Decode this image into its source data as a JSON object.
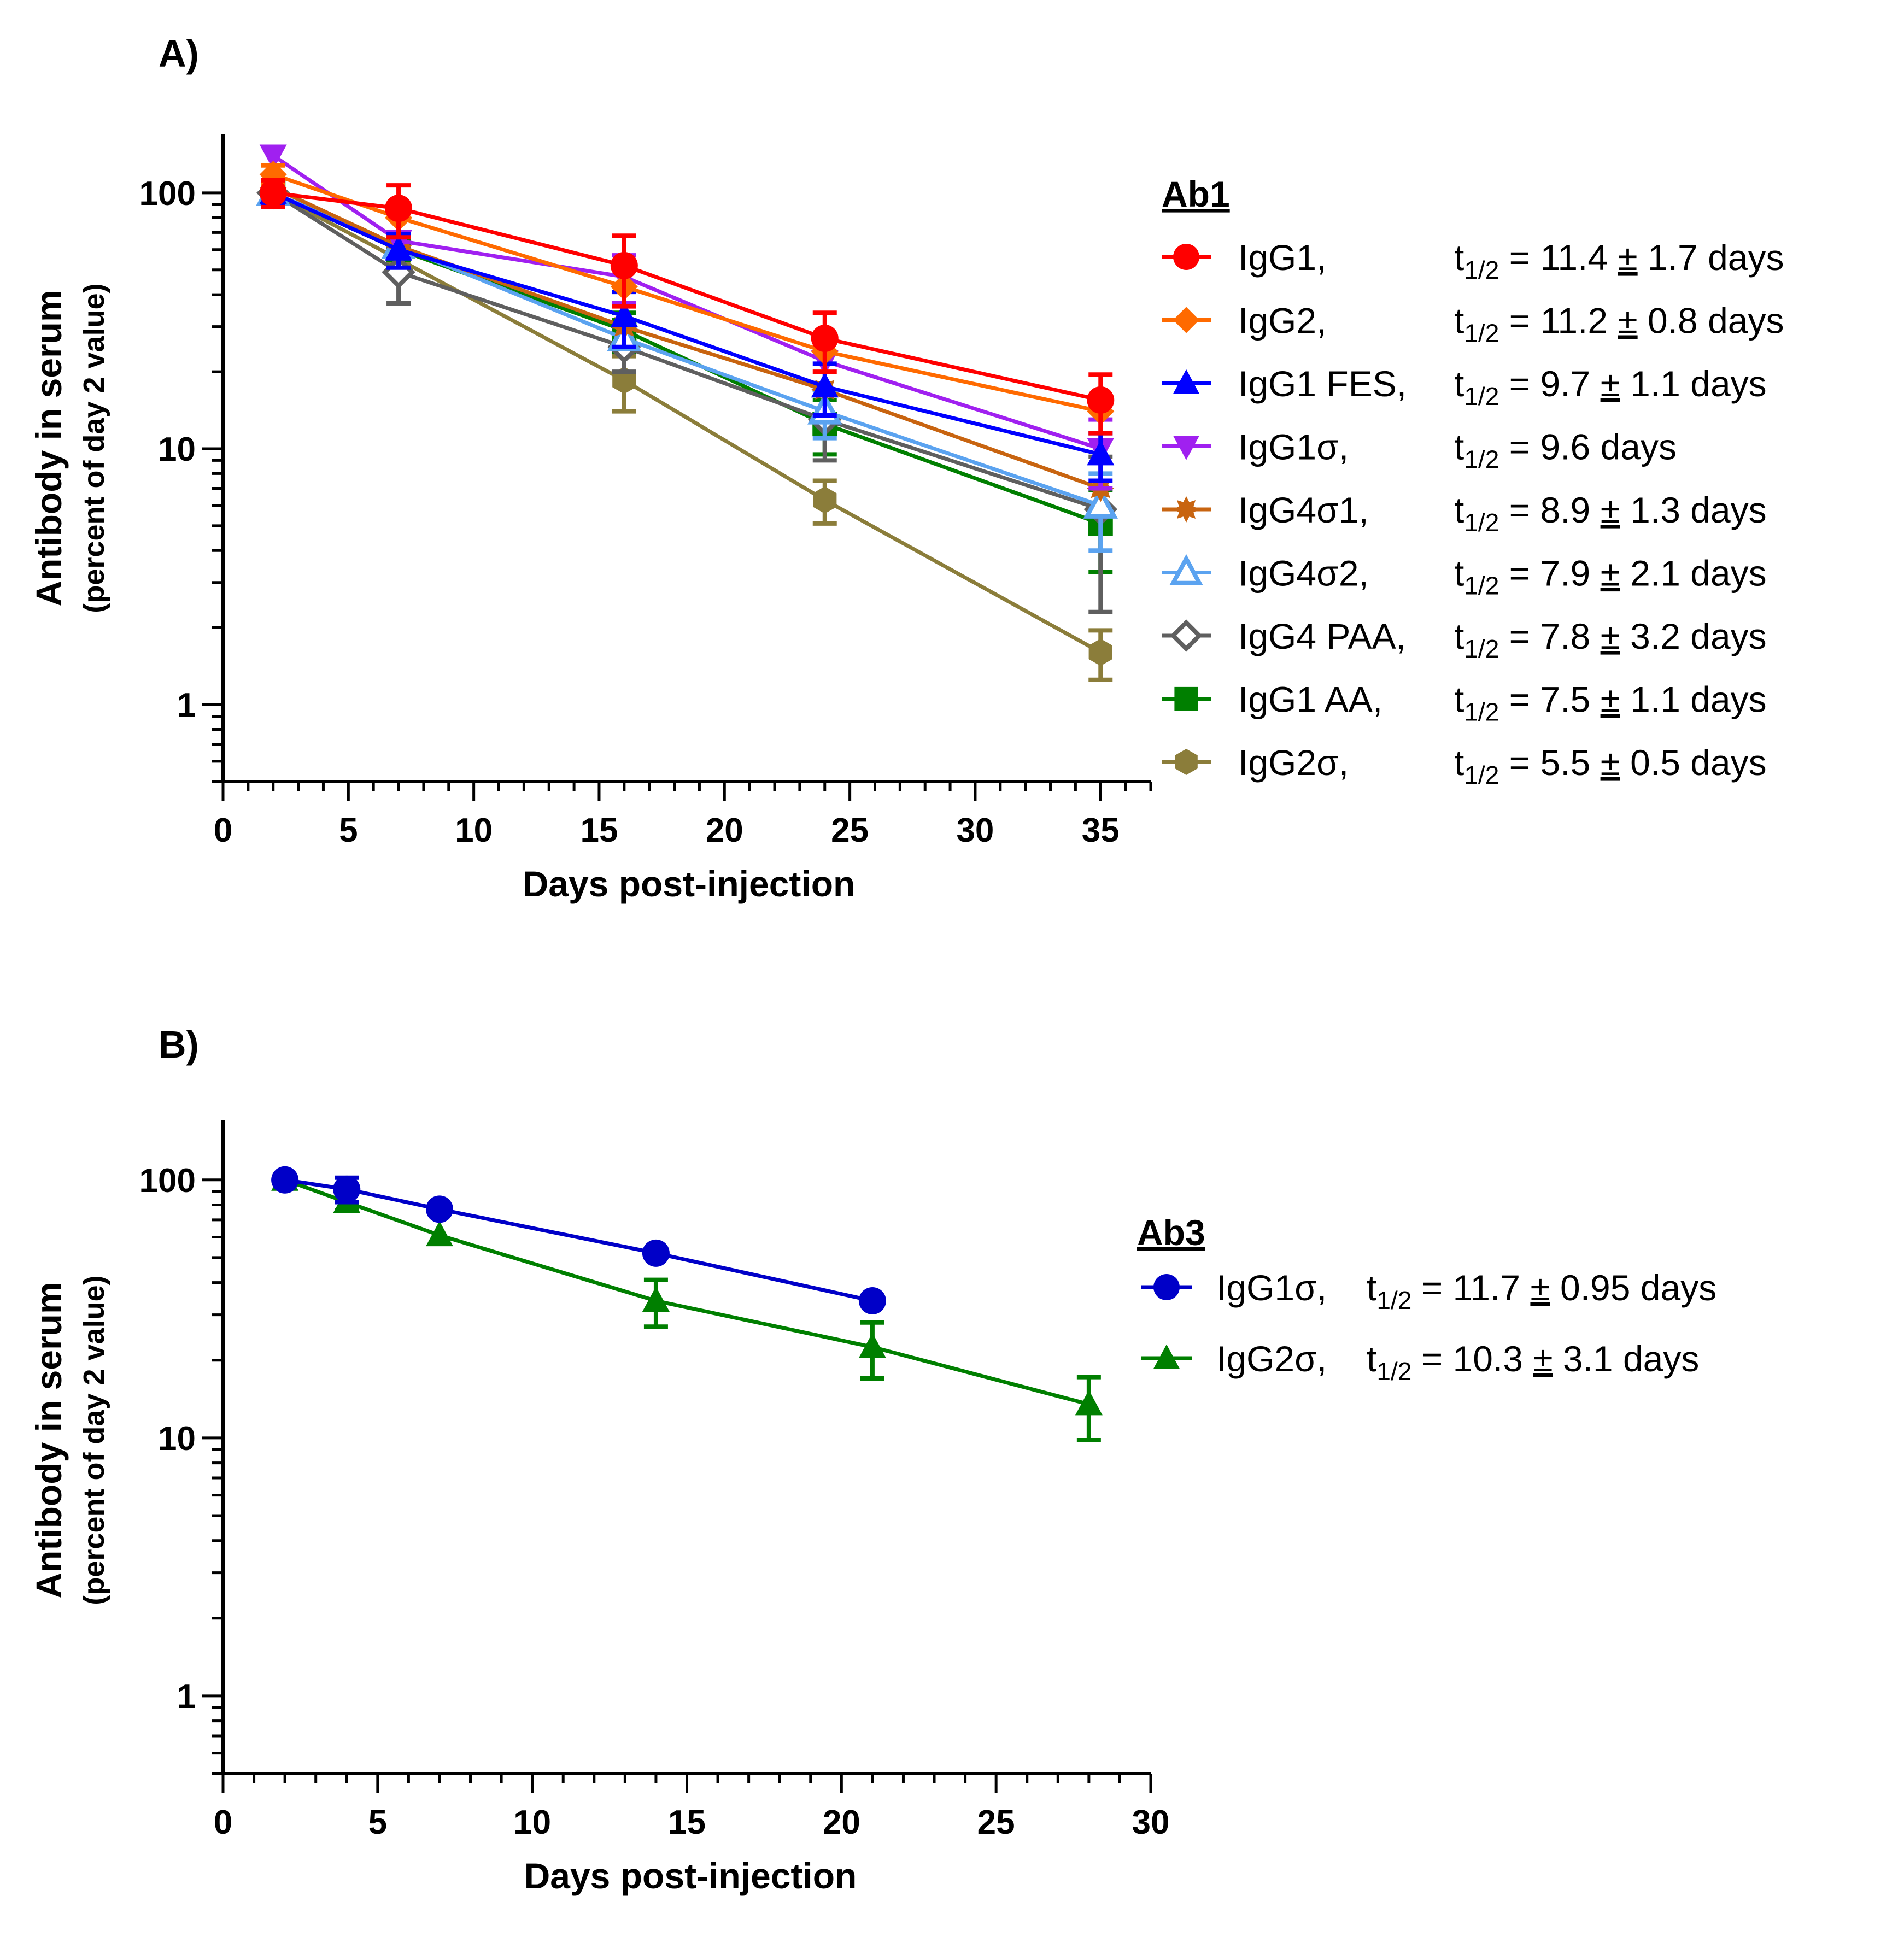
{
  "chart_data": [
    {
      "panel_label": "A)",
      "type": "line",
      "xlabel": "Days post-injection",
      "ylabel": "Antibody in serum",
      "ylabel_sub": "(percent of day 2 value)",
      "yscale": "log",
      "xlim": [
        0,
        37
      ],
      "ylim": [
        0.5,
        170
      ],
      "xticks": [
        0,
        5,
        10,
        15,
        20,
        25,
        30,
        35
      ],
      "xtick_labels": [
        "0",
        "5",
        "10",
        "15",
        "20",
        "25",
        "30",
        "35"
      ],
      "yticks": [
        1,
        10,
        100
      ],
      "ytick_labels": [
        "1",
        "10",
        "100"
      ],
      "legend_title": "Ab1",
      "legend_position": "right",
      "series": [
        {
          "name": "IgG1,",
          "t_half": "11.4",
          "t_half_err": "1.7",
          "color": "#ff0000",
          "marker": "circle",
          "x": [
            2,
            7,
            16,
            24,
            35
          ],
          "y": [
            100,
            87,
            52,
            27,
            15.5
          ],
          "err": [
            12,
            20,
            16,
            7,
            4
          ]
        },
        {
          "name": "IgG2,",
          "t_half": "11.2",
          "t_half_err": "0.8",
          "color": "#ff6a00",
          "marker": "diamond",
          "x": [
            2,
            7,
            16,
            24,
            35
          ],
          "y": [
            118,
            80,
            43,
            24,
            14
          ],
          "err": [
            10,
            0,
            0,
            0,
            0
          ]
        },
        {
          "name": "IgG1 FES,",
          "t_half": "9.7",
          "t_half_err": "1.1",
          "color": "#0000ff",
          "marker": "triangle-up",
          "x": [
            2,
            7,
            16,
            24,
            35
          ],
          "y": [
            100,
            60,
            33,
            17.5,
            9.5
          ],
          "err": [
            10,
            9,
            8,
            4,
            2
          ]
        },
        {
          "name": "IgG1σ,",
          "t_half": "9.6",
          "t_half_err": "",
          "color": "#a020f0",
          "marker": "triangle-down",
          "x": [
            2,
            7,
            16,
            24,
            35
          ],
          "y": [
            140,
            65,
            47,
            22,
            10
          ],
          "err": [
            0,
            0,
            10,
            0,
            3
          ]
        },
        {
          "name": "IgG4σ1,",
          "t_half": "8.9",
          "t_half_err": "1.3",
          "color": "#c86410",
          "marker": "star",
          "x": [
            2,
            7,
            16,
            24,
            35
          ],
          "y": [
            105,
            62,
            30,
            17,
            7
          ],
          "err": [
            0,
            0,
            0,
            0,
            0
          ]
        },
        {
          "name": "IgG4σ2,",
          "t_half": "7.9",
          "t_half_err": "2.1",
          "color": "#5ba3f0",
          "marker": "triangle-open",
          "x": [
            2,
            7,
            16,
            24,
            35
          ],
          "y": [
            100,
            62,
            27,
            14,
            6
          ],
          "err": [
            0,
            0,
            0,
            3,
            2
          ]
        },
        {
          "name": "IgG4 PAA,",
          "t_half": "7.8",
          "t_half_err": "3.2",
          "color": "#5f5f5f",
          "marker": "diamond-open",
          "x": [
            2,
            7,
            16,
            24,
            35
          ],
          "y": [
            100,
            49,
            25,
            13,
            5.8
          ],
          "err": [
            12,
            12,
            5,
            4,
            3.5
          ]
        },
        {
          "name": "IgG1 AA,",
          "t_half": "7.5",
          "t_half_err": "1.1",
          "color": "#007f00",
          "marker": "square",
          "x": [
            2,
            7,
            16,
            24,
            35
          ],
          "y": [
            100,
            60,
            29,
            12.5,
            5.1
          ],
          "err": [
            0,
            0,
            5,
            3,
            1.8
          ]
        },
        {
          "name": "IgG2σ,",
          "t_half": "5.5",
          "t_half_err": "0.5",
          "color": "#8b7d3a",
          "marker": "hexagon",
          "x": [
            2,
            7,
            16,
            24,
            35
          ],
          "y": [
            100,
            55,
            18.5,
            6.3,
            1.6
          ],
          "err": [
            0,
            0,
            4.5,
            1.2,
            0.35
          ]
        }
      ]
    },
    {
      "panel_label": "B)",
      "type": "line",
      "xlabel": "Days post-injection",
      "ylabel": "Antibody in serum",
      "ylabel_sub": "(percent of day 2 value)",
      "yscale": "log",
      "xlim": [
        0,
        30
      ],
      "ylim": [
        0.5,
        170
      ],
      "xticks": [
        0,
        5,
        10,
        15,
        20,
        25,
        30
      ],
      "xtick_labels": [
        "0",
        "5",
        "10",
        "15",
        "20",
        "25",
        "30"
      ],
      "yticks": [
        1,
        10,
        100
      ],
      "ytick_labels": [
        "1",
        "10",
        "100"
      ],
      "legend_title": "Ab3",
      "legend_position": "right",
      "series": [
        {
          "name": "IgG1σ,",
          "t_half": "11.7",
          "t_half_err": "0.95",
          "color": "#0000c8",
          "marker": "circle",
          "x": [
            2,
            4,
            7,
            14,
            21
          ],
          "y": [
            100,
            92,
            77,
            52,
            34
          ],
          "err": [
            0,
            10,
            0,
            0,
            0
          ]
        },
        {
          "name": "IgG2σ,",
          "t_half": "10.3",
          "t_half_err": "3.1",
          "color": "#007f00",
          "marker": "triangle-up",
          "x": [
            2,
            4,
            7,
            14,
            21,
            28
          ],
          "y": [
            100,
            82,
            61,
            34,
            22.5,
            13.5
          ],
          "err": [
            0,
            6,
            0,
            7,
            5.5,
            3.7
          ]
        }
      ]
    }
  ],
  "legend_text": {
    "t": "t",
    "sub": "1/2",
    "eq": " = ",
    "pm": "±",
    "days": "days"
  }
}
